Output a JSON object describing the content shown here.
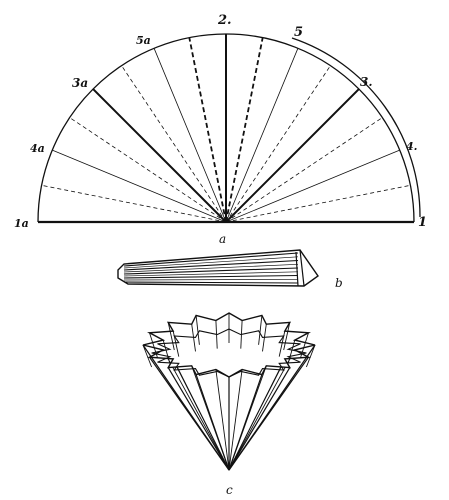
{
  "semicircle": {
    "fold_labels": {
      "l1": "1",
      "l1a": "1a",
      "l2": "2.",
      "l3": "3.",
      "l3a": "3a",
      "l4": "4.",
      "l4a": "4a",
      "l5": "5",
      "l5a": "5a"
    },
    "caption": "a"
  },
  "folded_strip": {
    "caption": "b"
  },
  "fluted_filter": {
    "caption": "c"
  },
  "colors": {
    "ink": "#111111",
    "paper": "#ffffff"
  }
}
